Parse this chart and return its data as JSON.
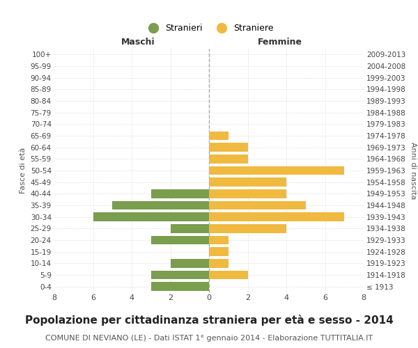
{
  "age_groups": [
    "100+",
    "95-99",
    "90-94",
    "85-89",
    "80-84",
    "75-79",
    "70-74",
    "65-69",
    "60-64",
    "55-59",
    "50-54",
    "45-49",
    "40-44",
    "35-39",
    "30-34",
    "25-29",
    "20-24",
    "15-19",
    "10-14",
    "5-9",
    "0-4"
  ],
  "birth_years": [
    "≤ 1913",
    "1914-1918",
    "1919-1923",
    "1924-1928",
    "1929-1933",
    "1934-1938",
    "1939-1943",
    "1944-1948",
    "1949-1953",
    "1954-1958",
    "1959-1963",
    "1964-1968",
    "1969-1973",
    "1974-1978",
    "1979-1983",
    "1984-1988",
    "1989-1993",
    "1994-1998",
    "1999-2003",
    "2004-2008",
    "2009-2013"
  ],
  "males": [
    0,
    0,
    0,
    0,
    0,
    0,
    0,
    0,
    0,
    0,
    0,
    0,
    3,
    5,
    6,
    2,
    3,
    0,
    2,
    3,
    3
  ],
  "females": [
    0,
    0,
    0,
    0,
    0,
    0,
    0,
    1,
    2,
    2,
    7,
    4,
    4,
    5,
    7,
    4,
    1,
    1,
    1,
    2,
    0
  ],
  "male_color": "#7a9e4e",
  "female_color": "#f0b940",
  "grid_color": "#d0d0d0",
  "center_line_color": "#aaaaaa",
  "background_color": "#ffffff",
  "title": "Popolazione per cittadinanza straniera per età e sesso - 2014",
  "subtitle": "COMUNE DI NEVIANO (LE) - Dati ISTAT 1° gennaio 2014 - Elaborazione TUTTITALIA.IT",
  "xlabel_left": "Maschi",
  "xlabel_right": "Femmine",
  "ylabel_left": "Fasce di età",
  "ylabel_right": "Anni di nascita",
  "legend_male": "Stranieri",
  "legend_female": "Straniere",
  "xlim": 8,
  "title_fontsize": 11,
  "subtitle_fontsize": 8
}
